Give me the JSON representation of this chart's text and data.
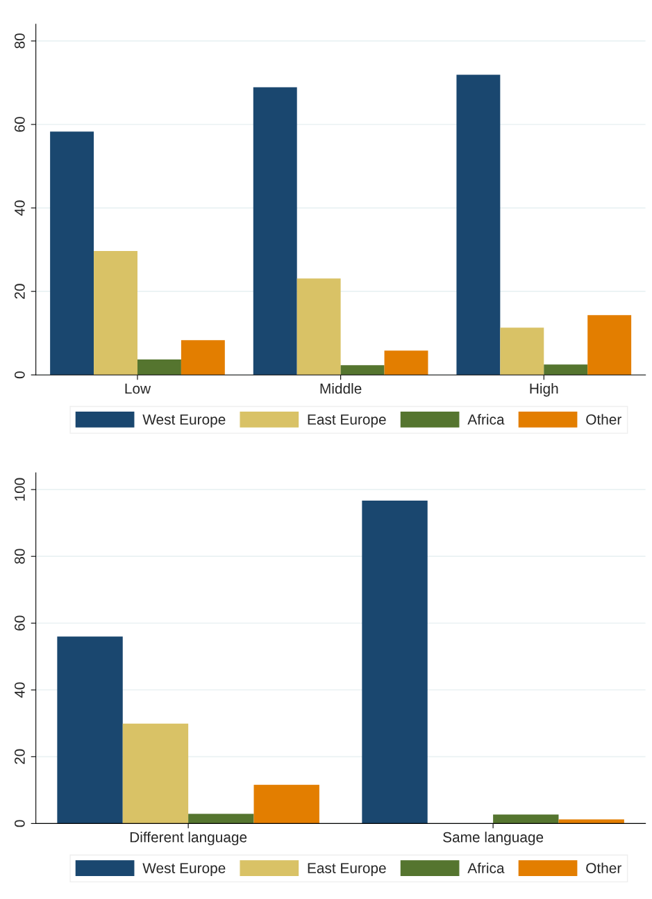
{
  "chart_data": [
    {
      "type": "bar",
      "categories": [
        "Low",
        "Middle",
        "High"
      ],
      "series": [
        {
          "name": "West Europe",
          "color": "#1a476f",
          "values": [
            58.3,
            68.9,
            71.9
          ]
        },
        {
          "name": "East Europe",
          "color": "#d9c266",
          "values": [
            29.7,
            23.1,
            11.3
          ]
        },
        {
          "name": "Africa",
          "color": "#55752f",
          "values": [
            3.7,
            2.3,
            2.5
          ]
        },
        {
          "name": "Other",
          "color": "#e37e00",
          "values": [
            8.3,
            5.8,
            14.3
          ]
        }
      ],
      "ylim": [
        0,
        84
      ],
      "yticks": [
        0,
        20,
        40,
        60,
        80
      ],
      "grid": "y",
      "legend": "bottom"
    },
    {
      "type": "bar",
      "categories": [
        "Different language",
        "Same language"
      ],
      "series": [
        {
          "name": "West Europe",
          "color": "#1a476f",
          "values": [
            56.0,
            96.7
          ]
        },
        {
          "name": "East Europe",
          "color": "#d9c266",
          "values": [
            29.9,
            0
          ]
        },
        {
          "name": "Africa",
          "color": "#55752f",
          "values": [
            2.9,
            2.7
          ]
        },
        {
          "name": "Other",
          "color": "#e37e00",
          "values": [
            11.6,
            1.2
          ]
        }
      ],
      "ylim": [
        0,
        105
      ],
      "yticks": [
        0,
        20,
        40,
        60,
        80,
        100
      ],
      "grid": "y",
      "legend": "bottom"
    }
  ]
}
